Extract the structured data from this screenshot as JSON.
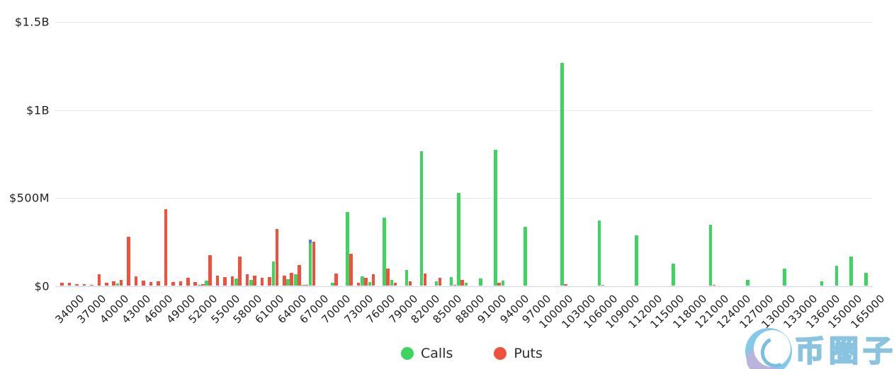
{
  "chart_data": {
    "type": "bar",
    "title": "",
    "xlabel": "",
    "ylabel": "",
    "grid": true,
    "legend_position": "bottom-center",
    "ylim_musd": [
      0,
      1500
    ],
    "y_axis": [
      {
        "label": "$1.5B",
        "value_musd": 1500
      },
      {
        "label": "$1B",
        "value_musd": 1000
      },
      {
        "label": "$500M",
        "value_musd": 500
      },
      {
        "label": "$0",
        "value_musd": 0
      }
    ],
    "x_axis_note": "strike prices; every 3rd category labeled",
    "series": [
      {
        "name": "Calls",
        "color": "#3dd45f"
      },
      {
        "name": "Puts",
        "color": "#f1503c"
      }
    ],
    "columns": [
      "strike",
      "calls_musd",
      "puts_musd"
    ],
    "strikes": [
      [
        32000,
        0,
        20
      ],
      [
        33000,
        0,
        18
      ],
      [
        34000,
        0,
        12
      ],
      [
        35000,
        0,
        10
      ],
      [
        36000,
        0,
        8
      ],
      [
        37000,
        0,
        68
      ],
      [
        38000,
        0,
        20
      ],
      [
        39000,
        0,
        27
      ],
      [
        40000,
        16,
        34
      ],
      [
        41000,
        0,
        280
      ],
      [
        42000,
        0,
        54
      ],
      [
        43000,
        0,
        30
      ],
      [
        44000,
        0,
        24
      ],
      [
        45000,
        0,
        27
      ],
      [
        46000,
        0,
        435
      ],
      [
        47000,
        0,
        24
      ],
      [
        48000,
        0,
        27
      ],
      [
        49000,
        0,
        47
      ],
      [
        50000,
        0,
        24
      ],
      [
        51000,
        8,
        10
      ],
      [
        52000,
        30,
        175
      ],
      [
        53000,
        0,
        60
      ],
      [
        54000,
        0,
        52
      ],
      [
        55000,
        0,
        56
      ],
      [
        56000,
        43,
        167
      ],
      [
        57000,
        0,
        67
      ],
      [
        58000,
        33,
        60
      ],
      [
        59000,
        0,
        47
      ],
      [
        60000,
        0,
        50
      ],
      [
        61000,
        137,
        325
      ],
      [
        62000,
        0,
        60
      ],
      [
        63000,
        40,
        74
      ],
      [
        64000,
        67,
        120
      ],
      [
        65000,
        5,
        5
      ],
      [
        66000,
        244,
        253
      ],
      [
        67000,
        0,
        0
      ],
      [
        68000,
        0,
        0
      ],
      [
        69000,
        20,
        70
      ],
      [
        70000,
        0,
        0
      ],
      [
        71000,
        421,
        184
      ],
      [
        72000,
        0,
        19
      ],
      [
        73000,
        54,
        46
      ],
      [
        74000,
        24,
        68
      ],
      [
        75000,
        0,
        0
      ],
      [
        76000,
        387,
        99
      ],
      [
        77000,
        36,
        20
      ],
      [
        78000,
        0,
        0
      ],
      [
        79000,
        92,
        28
      ],
      [
        80000,
        0,
        0
      ],
      [
        81000,
        766,
        72
      ],
      [
        82000,
        0,
        0
      ],
      [
        83000,
        25,
        45
      ],
      [
        84000,
        0,
        0
      ],
      [
        85000,
        50,
        8
      ],
      [
        86000,
        528,
        36
      ],
      [
        87000,
        20,
        0
      ],
      [
        88000,
        0,
        0
      ],
      [
        89000,
        43,
        0
      ],
      [
        90000,
        0,
        0
      ],
      [
        91000,
        773,
        20
      ],
      [
        92000,
        30,
        0
      ],
      [
        93000,
        0,
        0
      ],
      [
        94000,
        0,
        0
      ],
      [
        95000,
        334,
        0
      ],
      [
        96000,
        0,
        0
      ],
      [
        97000,
        0,
        0
      ],
      [
        98000,
        0,
        0
      ],
      [
        99000,
        0,
        0
      ],
      [
        100000,
        1268,
        12
      ],
      [
        101000,
        0,
        0
      ],
      [
        102000,
        0,
        0
      ],
      [
        103000,
        0,
        0
      ],
      [
        104000,
        0,
        0
      ],
      [
        105000,
        370,
        8
      ],
      [
        106000,
        0,
        0
      ],
      [
        107000,
        0,
        0
      ],
      [
        108000,
        0,
        0
      ],
      [
        109000,
        0,
        0
      ],
      [
        110000,
        288,
        0
      ],
      [
        111000,
        0,
        0
      ],
      [
        112000,
        0,
        0
      ],
      [
        113000,
        0,
        0
      ],
      [
        114000,
        0,
        0
      ],
      [
        115000,
        127,
        0
      ],
      [
        116000,
        0,
        0
      ],
      [
        117000,
        0,
        0
      ],
      [
        118000,
        0,
        0
      ],
      [
        119000,
        0,
        0
      ],
      [
        120000,
        347,
        8
      ],
      [
        121000,
        0,
        0
      ],
      [
        122000,
        0,
        0
      ],
      [
        123000,
        0,
        0
      ],
      [
        124000,
        0,
        0
      ],
      [
        125000,
        33,
        0
      ],
      [
        126000,
        0,
        0
      ],
      [
        127000,
        0,
        0
      ],
      [
        128000,
        0,
        0
      ],
      [
        129000,
        0,
        0
      ],
      [
        130000,
        99,
        0
      ],
      [
        131000,
        0,
        0
      ],
      [
        132000,
        0,
        0
      ],
      [
        133000,
        0,
        0
      ],
      [
        134000,
        0,
        0
      ],
      [
        135000,
        27,
        0
      ],
      [
        136000,
        0,
        0
      ],
      [
        140000,
        114,
        0
      ],
      [
        145000,
        0,
        0
      ],
      [
        150000,
        168,
        0
      ],
      [
        155000,
        0,
        0
      ],
      [
        160000,
        74,
        0
      ],
      [
        165000,
        0,
        0
      ]
    ],
    "price_marker": {
      "strike": 66000,
      "color": "#5f74d8",
      "cap_musd": 18
    }
  },
  "legend": {
    "items": [
      {
        "label": "Calls",
        "color": "#3dd45f"
      },
      {
        "label": "Puts",
        "color": "#f1503c"
      }
    ]
  },
  "watermark": {
    "text": "币圈子"
  }
}
